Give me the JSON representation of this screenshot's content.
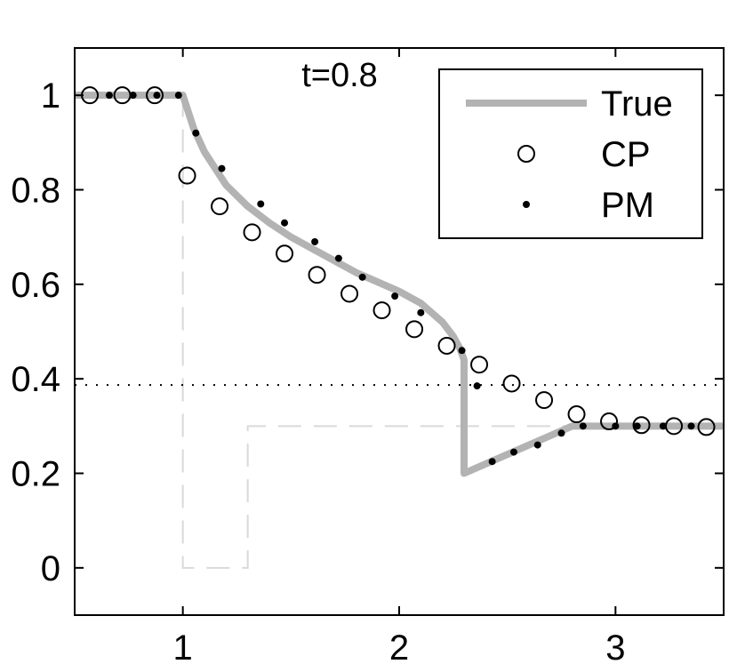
{
  "chart_data": {
    "type": "line",
    "annotation": "t=0.8",
    "xlim": [
      0.5,
      3.5
    ],
    "ylim": [
      -0.1,
      1.1
    ],
    "x_ticks": [
      1,
      2,
      3
    ],
    "y_ticks": [
      0,
      0.2,
      0.4,
      0.6,
      0.8,
      1
    ],
    "x_tick_labels": [
      "1",
      "2",
      "3"
    ],
    "y_tick_labels": [
      "0",
      "0.2",
      "0.4",
      "0.6",
      "0.8",
      "1"
    ],
    "legend_position": "top-right",
    "colors": {
      "true": "#b3b3b3",
      "initial": "#d9d9d9",
      "axes": "#000000"
    },
    "series": [
      {
        "name": "True",
        "style": "thick-gray-line",
        "x": [
          0.5,
          1.0,
          1.05,
          1.1,
          1.2,
          1.3,
          1.4,
          1.5,
          1.6,
          1.7,
          1.8,
          1.9,
          2.0,
          2.1,
          2.2,
          2.25,
          2.28,
          2.3,
          2.3,
          2.8,
          3.5
        ],
        "y": [
          1.0,
          1.0,
          0.93,
          0.88,
          0.81,
          0.765,
          0.73,
          0.7,
          0.675,
          0.65,
          0.625,
          0.605,
          0.585,
          0.56,
          0.52,
          0.49,
          0.465,
          0.44,
          0.2,
          0.3,
          0.3
        ]
      },
      {
        "name": "CP",
        "style": "open-circle",
        "x": [
          0.57,
          0.72,
          0.87,
          1.02,
          1.17,
          1.32,
          1.47,
          1.62,
          1.77,
          1.92,
          2.07,
          2.22,
          2.37,
          2.52,
          2.67,
          2.82,
          2.97,
          3.12,
          3.27,
          3.42
        ],
        "y": [
          1.0,
          1.0,
          1.0,
          0.83,
          0.765,
          0.71,
          0.665,
          0.62,
          0.58,
          0.545,
          0.505,
          0.47,
          0.43,
          0.39,
          0.355,
          0.325,
          0.31,
          0.302,
          0.3,
          0.298
        ]
      },
      {
        "name": "PM",
        "style": "dot",
        "x": [
          0.66,
          0.77,
          0.88,
          0.98,
          1.06,
          1.18,
          1.36,
          1.47,
          1.61,
          1.72,
          1.83,
          1.98,
          2.1,
          2.29,
          2.36,
          2.43,
          2.53,
          2.64,
          2.75,
          2.85,
          3.0,
          3.1,
          3.22,
          3.35
        ],
        "y": [
          1.0,
          1.0,
          1.0,
          1.0,
          0.92,
          0.845,
          0.77,
          0.73,
          0.69,
          0.655,
          0.615,
          0.575,
          0.54,
          0.46,
          0.385,
          0.225,
          0.245,
          0.26,
          0.285,
          0.3,
          0.3,
          0.3,
          0.3,
          0.3
        ]
      }
    ],
    "initial_condition": {
      "x": [
        0.5,
        1.0,
        1.0,
        1.3,
        1.3,
        3.5
      ],
      "y": [
        1.0,
        1.0,
        0.0,
        0.0,
        0.3,
        0.3
      ]
    },
    "reference_line": {
      "y": 0.387
    }
  }
}
